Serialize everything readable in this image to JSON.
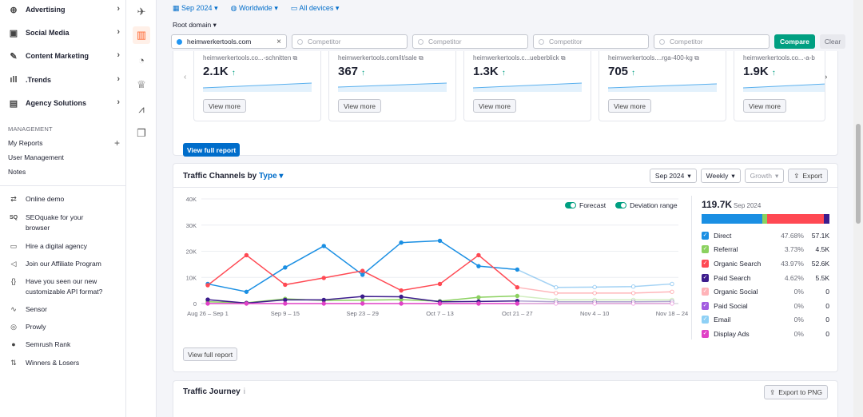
{
  "sidebar": {
    "nav": [
      {
        "label": "Advertising",
        "icon": "target-icon"
      },
      {
        "label": "Social Media",
        "icon": "social-icon"
      },
      {
        "label": "Content Marketing",
        "icon": "pen-icon"
      },
      {
        "label": ".Trends",
        "icon": "trends-icon"
      },
      {
        "label": "Agency Solutions",
        "icon": "doc-icon"
      }
    ],
    "management_title": "MANAGEMENT",
    "management": [
      "My Reports",
      "User Management",
      "Notes"
    ],
    "tools": [
      {
        "label": "Online demo",
        "icon": "demo-icon"
      },
      {
        "label": "SEOquake for your browser",
        "icon": "seoquake-icon"
      },
      {
        "label": "Hire a digital agency",
        "icon": "agency-icon"
      },
      {
        "label": "Join our Affiliate Program",
        "icon": "megaphone-icon"
      },
      {
        "label": "Have you seen our new customizable API format?",
        "icon": "api-icon"
      },
      {
        "label": "Sensor",
        "icon": "sensor-icon"
      },
      {
        "label": "Prowly",
        "icon": "prowly-icon"
      },
      {
        "label": "Semrush Rank",
        "icon": "rank-icon"
      },
      {
        "label": "Winners & Losers",
        "icon": "winners-icon"
      }
    ]
  },
  "filters": {
    "date": "Sep 2024",
    "region": "Worldwide",
    "device": "All devices",
    "root": "Root domain"
  },
  "compare": {
    "domain": "heimwerkertools.com",
    "competitor_placeholder": "Competitor",
    "compare_label": "Compare",
    "clear_label": "Clear"
  },
  "cards": [
    {
      "url": "heimwerkertools.co...-schnitten",
      "value": "2.1K"
    },
    {
      "url": "heimwerkertools.com/it/sale",
      "value": "367"
    },
    {
      "url": "heimwerkertools.c...ueberblick",
      "value": "1.3K"
    },
    {
      "url": "heimwerkertools....rga-400-kg",
      "value": "705"
    },
    {
      "url": "heimwerkertools.co...-a-b",
      "value": "1.9K"
    }
  ],
  "card_button": "View more",
  "view_full_report": "View full report",
  "traffic": {
    "title": "Traffic Channels by",
    "type_label": "Type",
    "month": "Sep 2024",
    "granularity": "Weekly",
    "metric": "Growth",
    "export": "Export",
    "forecast_label": "Forecast",
    "deviation_label": "Deviation range",
    "total": "119.7K",
    "total_period": "Sep 2024",
    "channels": [
      {
        "name": "Direct",
        "pct": "47.68%",
        "value": "57.1K",
        "color": "#1a8fe3"
      },
      {
        "name": "Referral",
        "pct": "3.73%",
        "value": "4.5K",
        "color": "#8bd15f"
      },
      {
        "name": "Organic Search",
        "pct": "43.97%",
        "value": "52.6K",
        "color": "#ff4953"
      },
      {
        "name": "Paid Search",
        "pct": "4.62%",
        "value": "5.5K",
        "color": "#3c1c8c"
      },
      {
        "name": "Organic Social",
        "pct": "0%",
        "value": "0",
        "color": "#ffb3b8"
      },
      {
        "name": "Paid Social",
        "pct": "0%",
        "value": "0",
        "color": "#a25be0"
      },
      {
        "name": "Email",
        "pct": "0%",
        "value": "0",
        "color": "#8ed0f5"
      },
      {
        "name": "Display Ads",
        "pct": "0%",
        "value": "0",
        "color": "#e041c6"
      }
    ]
  },
  "journey": {
    "title": "Traffic Journey",
    "info": "i",
    "export": "Export to PNG"
  },
  "chart_data": {
    "type": "line",
    "x": [
      "Aug 26 – Sep 1",
      "Sep 2 – 8",
      "Sep 9 – 15",
      "Sep 16 – 22",
      "Sep 23 – 29",
      "Sep 30 – Oct 6",
      "Oct 7 – 13",
      "Oct 14 – 20",
      "Oct 21 – 27",
      "Oct 28 – Nov 3",
      "Nov 4 – 10",
      "Nov 11 – 17",
      "Nov 18 – 24"
    ],
    "x_tick_labels": [
      "Aug 26 – Sep 1",
      "Sep 9 – 15",
      "Sep 23 – 29",
      "Oct 7 – 13",
      "Oct 21 – 27",
      "Nov 4 – 10",
      "Nov 18 – 24"
    ],
    "y_ticks": [
      "0",
      "10K",
      "20K",
      "30K",
      "40K"
    ],
    "ylim": [
      0,
      40000
    ],
    "forecast_from_index": 8,
    "series": [
      {
        "name": "Direct",
        "color": "#1a8fe3",
        "values": [
          7500,
          4500,
          13800,
          22000,
          11000,
          23300,
          24000,
          14300,
          13000,
          6200,
          6300,
          6500,
          7500
        ]
      },
      {
        "name": "Organic Search",
        "color": "#ff4953",
        "values": [
          7000,
          18500,
          7200,
          9800,
          12500,
          5000,
          7500,
          18500,
          6200,
          4000,
          4000,
          4000,
          4500
        ]
      },
      {
        "name": "Referral",
        "color": "#8bd15f",
        "values": [
          700,
          300,
          1800,
          1200,
          1300,
          1500,
          900,
          2400,
          2900,
          1400,
          1400,
          1400,
          1400
        ]
      },
      {
        "name": "Paid Search",
        "color": "#3c1c8c",
        "values": [
          1500,
          200,
          1400,
          1400,
          2700,
          2600,
          700,
          800,
          1000,
          700,
          700,
          700,
          800
        ]
      },
      {
        "name": "Display Ads",
        "color": "#e041c6",
        "values": [
          0,
          0,
          0,
          0,
          0,
          0,
          0,
          0,
          0,
          0,
          0,
          0,
          0
        ]
      }
    ]
  }
}
